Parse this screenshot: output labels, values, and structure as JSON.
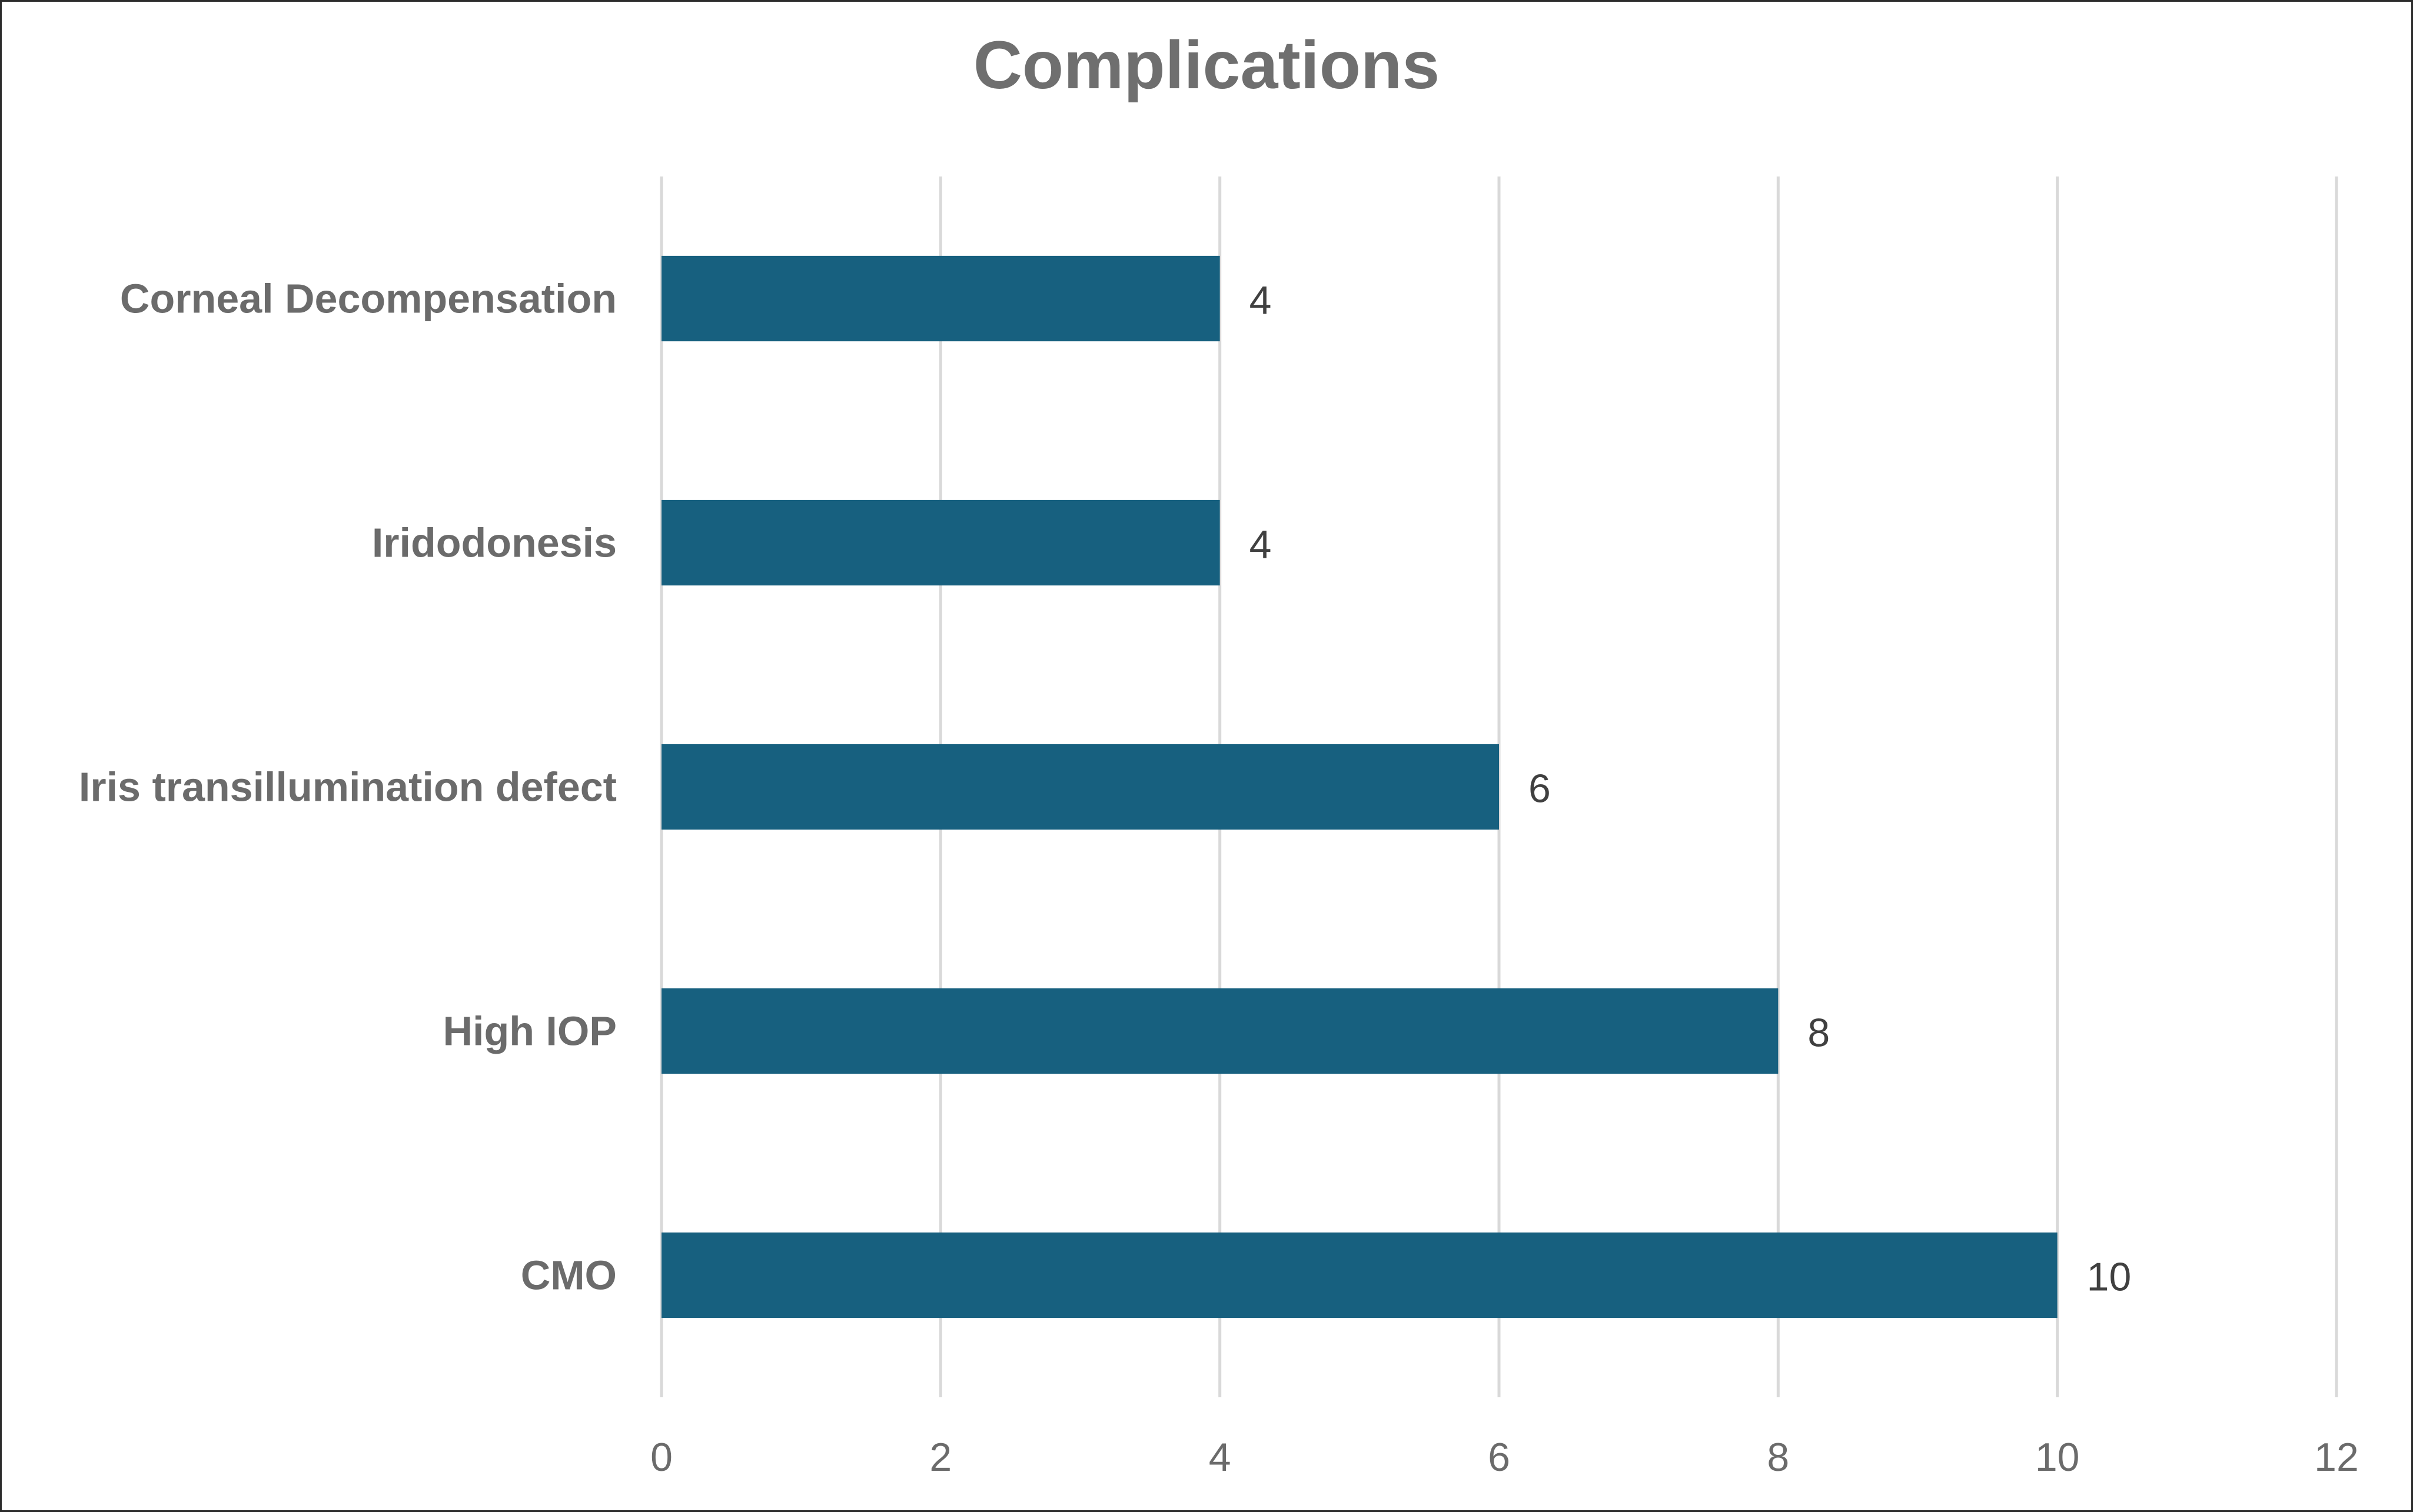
{
  "chart_data": {
    "type": "bar",
    "orientation": "horizontal",
    "title": "Complications",
    "categories": [
      "Corneal Decompensation",
      "Iridodonesis",
      "Iris transillumination defect",
      "High IOP",
      "CMO"
    ],
    "values": [
      4,
      4,
      6,
      8,
      10
    ],
    "data_labels": [
      "4",
      "4",
      "6",
      "8",
      "10"
    ],
    "xlim": [
      0,
      12
    ],
    "x_ticks": [
      0,
      2,
      4,
      6,
      8,
      10,
      12
    ],
    "x_tick_labels": [
      "0",
      "2",
      "4",
      "6",
      "8",
      "10",
      "12"
    ],
    "xlabel": "",
    "ylabel": "",
    "grid": "vertical",
    "legend": "none",
    "bar_color": "#17607f",
    "grid_color": "#d9d9d9",
    "title_color": "#6f6f6f",
    "label_color": "#6b6b6b",
    "data_label_color": "#404040"
  }
}
